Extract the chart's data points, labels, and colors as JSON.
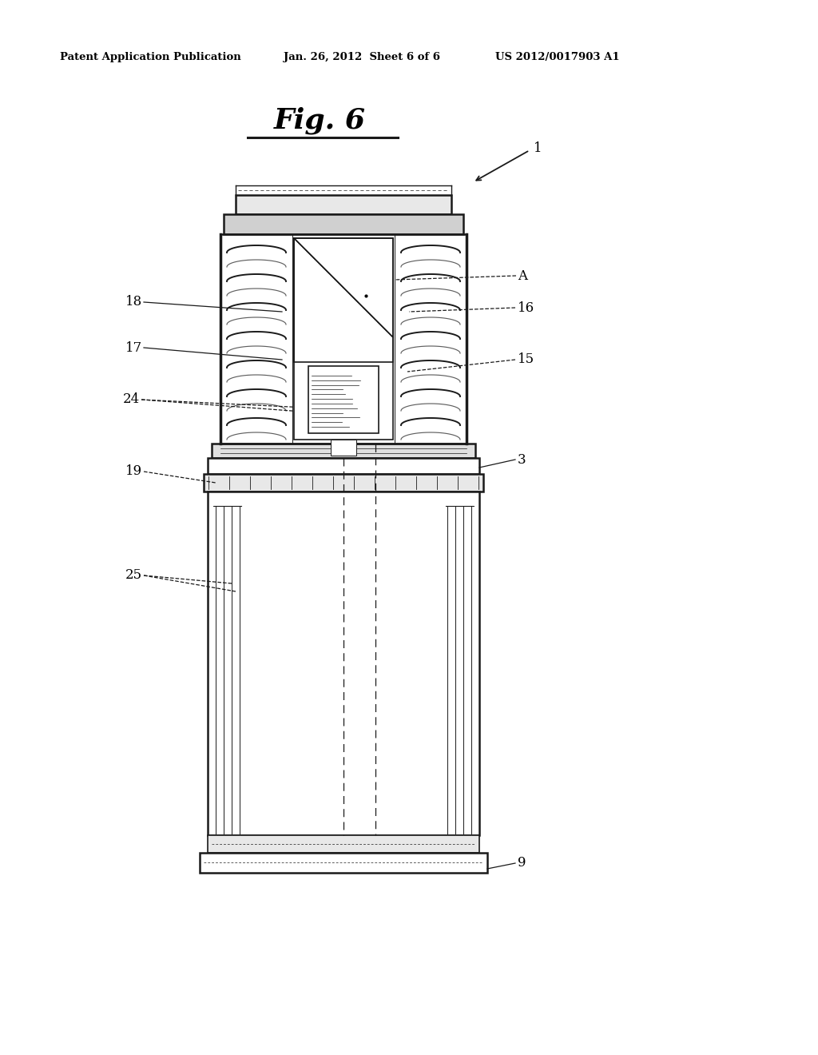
{
  "bg_color": "#ffffff",
  "header_left": "Patent Application Publication",
  "header_mid": "Jan. 26, 2012  Sheet 6 of 6",
  "header_right": "US 2012/0017903 A1",
  "fig_label": "Fig. 6",
  "label_1": "1",
  "label_A": "A",
  "label_16": "16",
  "label_15": "15",
  "label_18": "18",
  "label_17": "17",
  "label_24": "24",
  "label_19": "19",
  "label_3": "3",
  "label_25": "25",
  "label_9": "9"
}
